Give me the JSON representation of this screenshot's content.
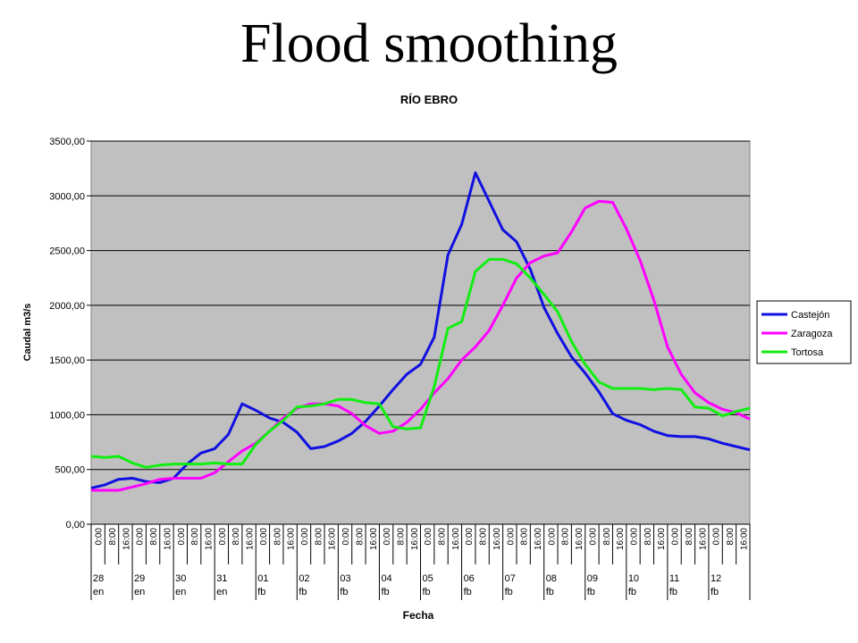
{
  "slide": {
    "title": "Flood smoothing"
  },
  "chart_data": {
    "type": "line",
    "title": "RÍO EBRO",
    "xlabel": "Fecha",
    "ylabel": "Caudal m3/s",
    "ylim": [
      0,
      3500
    ],
    "yticks": [
      "0,00",
      "500,00",
      "1000,00",
      "1500,00",
      "2000,00",
      "2500,00",
      "3000,00",
      "3500,00"
    ],
    "grid": true,
    "legend_position": "right",
    "hour_labels": [
      "0:00",
      "8:00",
      "16:00",
      "0:00",
      "8:00",
      "16:00",
      "0:00",
      "8:00",
      "16:00",
      "0:00",
      "8:00",
      "16:00",
      "0:00",
      "8:00",
      "16:00",
      "0:00",
      "8:00",
      "16:00",
      "0:00",
      "8:00",
      "16:00",
      "0:00",
      "8:00",
      "16:00",
      "0:00",
      "8:00",
      "16:00",
      "0:00",
      "8:00",
      "16:00",
      "0:00",
      "8:00",
      "16:00",
      "0:00",
      "8:00",
      "16:00",
      "0:00",
      "8:00",
      "16:00",
      "0:00",
      "8:00",
      "16:00",
      "0:00",
      "8:00",
      "16:00",
      "0:00",
      "8:00",
      "16:00"
    ],
    "day_labels": [
      {
        "day": "28",
        "month": "en"
      },
      {
        "day": "29",
        "month": "en"
      },
      {
        "day": "30",
        "month": "en"
      },
      {
        "day": "31",
        "month": "en"
      },
      {
        "day": "01",
        "month": "fb"
      },
      {
        "day": "02",
        "month": "fb"
      },
      {
        "day": "03",
        "month": "fb"
      },
      {
        "day": "04",
        "month": "fb"
      },
      {
        "day": "05",
        "month": "fb"
      },
      {
        "day": "06",
        "month": "fb"
      },
      {
        "day": "07",
        "month": "fb"
      },
      {
        "day": "08",
        "month": "fb"
      },
      {
        "day": "09",
        "month": "fb"
      },
      {
        "day": "10",
        "month": "fb"
      },
      {
        "day": "11",
        "month": "fb"
      },
      {
        "day": "12",
        "month": "fb"
      }
    ],
    "series": [
      {
        "name": "Castejón",
        "color": "#1010e0",
        "values": [
          330,
          360,
          410,
          420,
          390,
          380,
          420,
          550,
          650,
          690,
          820,
          1100,
          1040,
          970,
          930,
          840,
          690,
          710,
          760,
          830,
          940,
          1080,
          1230,
          1370,
          1460,
          1710,
          2460,
          2740,
          3210,
          2950,
          2690,
          2580,
          2330,
          1980,
          1740,
          1530,
          1380,
          1210,
          1010,
          950,
          910,
          850,
          810,
          800,
          800,
          780,
          740,
          710,
          680
        ]
      },
      {
        "name": "Zaragoza",
        "color": "#ff00ff",
        "values": [
          310,
          310,
          310,
          340,
          370,
          410,
          420,
          420,
          420,
          470,
          570,
          670,
          740,
          850,
          970,
          1060,
          1100,
          1100,
          1080,
          1010,
          900,
          830,
          850,
          930,
          1050,
          1200,
          1330,
          1500,
          1620,
          1770,
          2000,
          2250,
          2390,
          2450,
          2480,
          2670,
          2890,
          2950,
          2940,
          2700,
          2410,
          2050,
          1620,
          1370,
          1200,
          1110,
          1050,
          1020,
          960
        ]
      },
      {
        "name": "Tortosa",
        "color": "#11ee11",
        "values": [
          620,
          610,
          620,
          560,
          520,
          540,
          550,
          550,
          550,
          560,
          550,
          550,
          730,
          850,
          950,
          1070,
          1080,
          1100,
          1140,
          1140,
          1110,
          1100,
          890,
          870,
          880,
          1260,
          1790,
          1850,
          2310,
          2420,
          2420,
          2380,
          2250,
          2100,
          1940,
          1670,
          1460,
          1300,
          1240,
          1240,
          1240,
          1230,
          1240,
          1230,
          1070,
          1060,
          990,
          1030,
          1060
        ]
      }
    ]
  }
}
